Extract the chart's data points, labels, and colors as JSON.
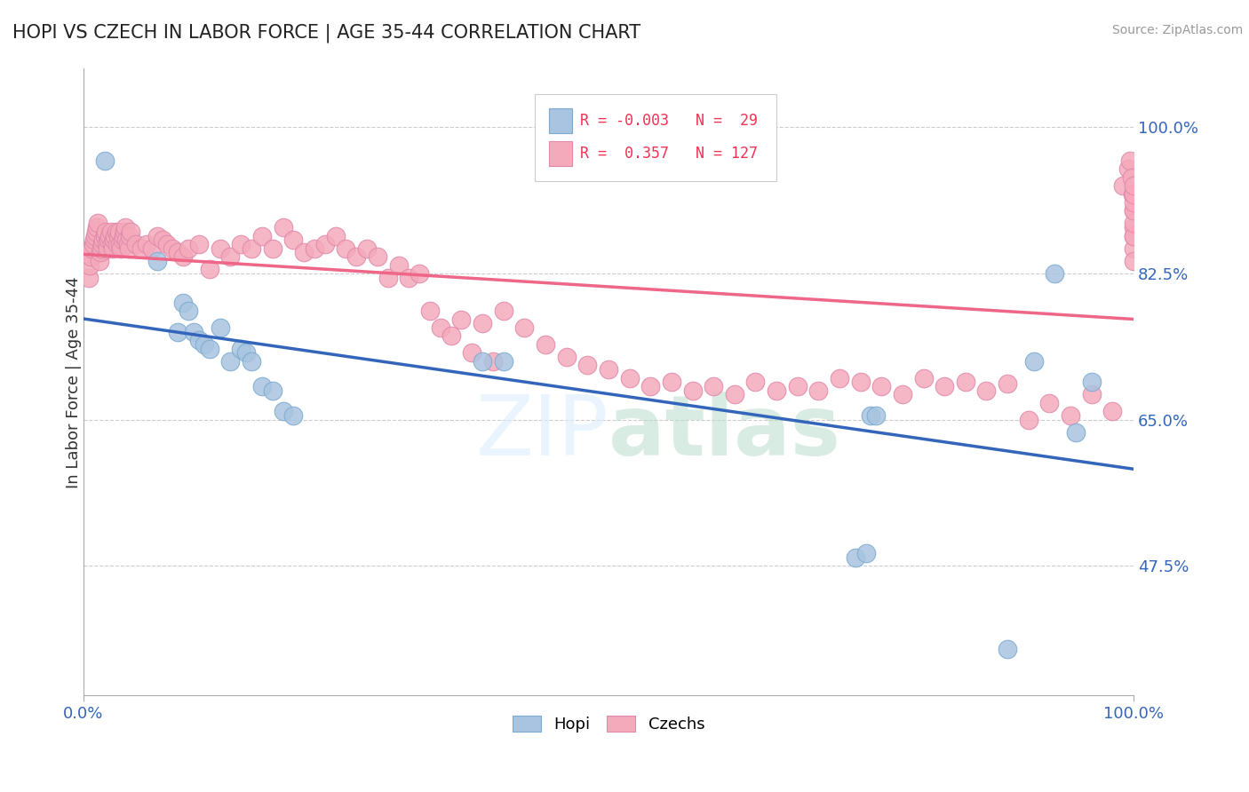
{
  "title": "HOPI VS CZECH IN LABOR FORCE | AGE 35-44 CORRELATION CHART",
  "source_text": "Source: ZipAtlas.com",
  "ylabel": "In Labor Force | Age 35-44",
  "xlim": [
    0.0,
    1.0
  ],
  "ylim": [
    0.32,
    1.07
  ],
  "yticks": [
    0.475,
    0.65,
    0.825,
    1.0
  ],
  "ytick_labels": [
    "47.5%",
    "65.0%",
    "82.5%",
    "100.0%"
  ],
  "xtick_labels": [
    "0.0%",
    "100.0%"
  ],
  "xticks": [
    0.0,
    1.0
  ],
  "hopi_color": "#A8C4E0",
  "czech_color": "#F4AABB",
  "hopi_line_color": "#3366BB",
  "czech_line_color": "#EE6688",
  "hopi_R": -0.003,
  "hopi_N": 29,
  "czech_R": 0.357,
  "czech_N": 127,
  "legend_label_hopi": "Hopi",
  "legend_label_czech": "Czechs",
  "watermark": "ZIPAtlas",
  "hopi_scatter_x": [
    0.02,
    0.07,
    0.09,
    0.095,
    0.1,
    0.105,
    0.11,
    0.115,
    0.12,
    0.13,
    0.14,
    0.15,
    0.155,
    0.16,
    0.17,
    0.18,
    0.19,
    0.2,
    0.38,
    0.4,
    0.735,
    0.745,
    0.75,
    0.755,
    0.88,
    0.905,
    0.925,
    0.945,
    0.96
  ],
  "hopi_scatter_y": [
    0.96,
    0.84,
    0.755,
    0.79,
    0.78,
    0.755,
    0.745,
    0.74,
    0.735,
    0.76,
    0.72,
    0.735,
    0.73,
    0.72,
    0.69,
    0.685,
    0.66,
    0.655,
    0.72,
    0.72,
    0.485,
    0.49,
    0.655,
    0.655,
    0.375,
    0.72,
    0.825,
    0.635,
    0.695
  ],
  "czech_scatter_x": [
    0.005,
    0.006,
    0.007,
    0.008,
    0.009,
    0.01,
    0.011,
    0.012,
    0.013,
    0.014,
    0.015,
    0.016,
    0.017,
    0.018,
    0.019,
    0.02,
    0.021,
    0.022,
    0.023,
    0.024,
    0.025,
    0.026,
    0.027,
    0.028,
    0.029,
    0.03,
    0.031,
    0.032,
    0.033,
    0.034,
    0.035,
    0.036,
    0.037,
    0.038,
    0.039,
    0.04,
    0.041,
    0.042,
    0.043,
    0.044,
    0.045,
    0.05,
    0.055,
    0.06,
    0.065,
    0.07,
    0.075,
    0.08,
    0.085,
    0.09,
    0.095,
    0.1,
    0.11,
    0.12,
    0.13,
    0.14,
    0.15,
    0.16,
    0.17,
    0.18,
    0.19,
    0.2,
    0.21,
    0.22,
    0.23,
    0.24,
    0.25,
    0.26,
    0.27,
    0.28,
    0.29,
    0.3,
    0.31,
    0.32,
    0.33,
    0.34,
    0.35,
    0.36,
    0.37,
    0.38,
    0.39,
    0.4,
    0.42,
    0.44,
    0.46,
    0.48,
    0.5,
    0.52,
    0.54,
    0.56,
    0.58,
    0.6,
    0.62,
    0.64,
    0.66,
    0.68,
    0.7,
    0.72,
    0.74,
    0.76,
    0.78,
    0.8,
    0.82,
    0.84,
    0.86,
    0.88,
    0.9,
    0.92,
    0.94,
    0.96,
    0.98,
    0.99,
    0.995,
    0.997,
    0.998,
    0.999,
    1.0,
    1.0,
    1.0,
    1.0,
    1.0,
    1.0,
    1.0,
    1.0,
    1.0,
    1.0,
    1.0
  ],
  "czech_scatter_y": [
    0.82,
    0.835,
    0.845,
    0.855,
    0.86,
    0.865,
    0.87,
    0.875,
    0.88,
    0.885,
    0.84,
    0.85,
    0.855,
    0.86,
    0.865,
    0.87,
    0.875,
    0.86,
    0.855,
    0.865,
    0.87,
    0.875,
    0.86,
    0.855,
    0.865,
    0.87,
    0.875,
    0.86,
    0.87,
    0.875,
    0.86,
    0.855,
    0.865,
    0.87,
    0.875,
    0.88,
    0.865,
    0.86,
    0.855,
    0.87,
    0.875,
    0.86,
    0.855,
    0.86,
    0.855,
    0.87,
    0.865,
    0.86,
    0.855,
    0.85,
    0.845,
    0.855,
    0.86,
    0.83,
    0.855,
    0.845,
    0.86,
    0.855,
    0.87,
    0.855,
    0.88,
    0.865,
    0.85,
    0.855,
    0.86,
    0.87,
    0.855,
    0.845,
    0.855,
    0.845,
    0.82,
    0.835,
    0.82,
    0.825,
    0.78,
    0.76,
    0.75,
    0.77,
    0.73,
    0.765,
    0.72,
    0.78,
    0.76,
    0.74,
    0.725,
    0.715,
    0.71,
    0.7,
    0.69,
    0.695,
    0.685,
    0.69,
    0.68,
    0.695,
    0.685,
    0.69,
    0.685,
    0.7,
    0.695,
    0.69,
    0.68,
    0.7,
    0.69,
    0.695,
    0.685,
    0.693,
    0.65,
    0.67,
    0.655,
    0.68,
    0.66,
    0.93,
    0.95,
    0.96,
    0.94,
    0.92,
    0.9,
    0.88,
    0.87,
    0.855,
    0.84,
    0.87,
    0.885,
    0.9,
    0.91,
    0.92,
    0.93
  ]
}
